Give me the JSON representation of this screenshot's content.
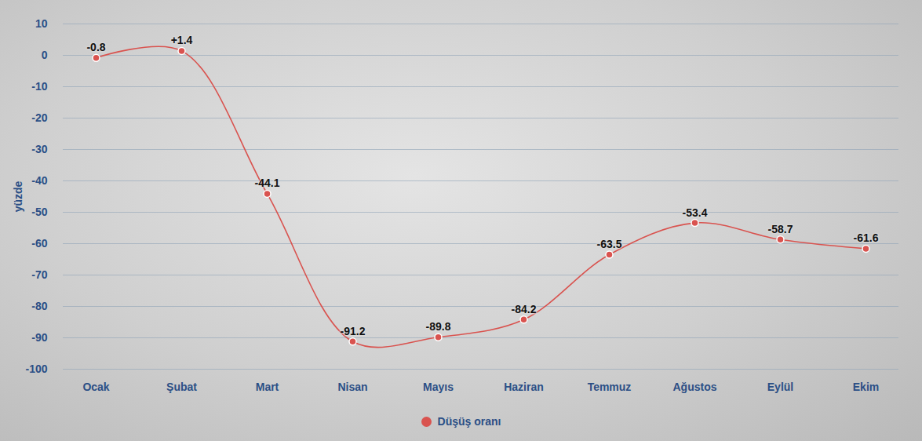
{
  "chart_data": {
    "type": "line",
    "y_label": "yüzde",
    "categories": [
      "Ocak",
      "Şubat",
      "Mart",
      "Nisan",
      "Mayıs",
      "Haziran",
      "Temmuz",
      "Ağustos",
      "Eylül",
      "Ekim"
    ],
    "series": [
      {
        "name": "Düşüş oranı",
        "color": "#d9534f",
        "marker": "circle",
        "line_style": "solid",
        "values": [
          -0.8,
          1.4,
          -44.1,
          -91.2,
          -89.8,
          -84.2,
          -63.5,
          -53.4,
          -58.7,
          -61.6
        ],
        "value_labels": [
          "-0.8",
          "+1.4",
          "-44.1",
          "-91.2",
          "-89.8",
          "-84.2",
          "-63.5",
          "-53.4",
          "-58.7",
          "-61.6"
        ]
      }
    ],
    "ylim": [
      -100,
      10
    ],
    "yticks": [
      10,
      0,
      -10,
      -20,
      -30,
      -40,
      -50,
      -60,
      -70,
      -80,
      -90,
      -100
    ],
    "grid": true,
    "data_labels": true,
    "legend": "bottom"
  }
}
